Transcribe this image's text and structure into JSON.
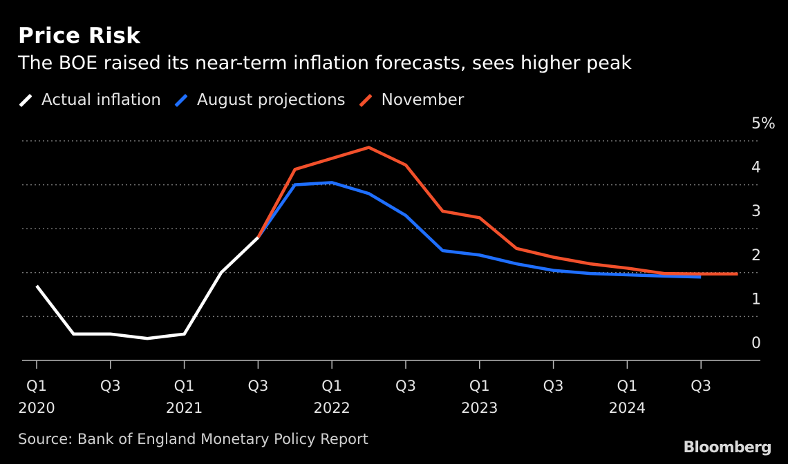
{
  "title": "Price Risk",
  "subtitle": "The BOE raised its near-term inflation forecasts, sees higher peak",
  "source": "Source: Bank of England Monetary Policy Report",
  "brand": "Bloomberg",
  "colors": {
    "background": "#000000",
    "actual": "#ffffff",
    "august": "#1f6fff",
    "november": "#f2502b",
    "grid": "#777777"
  },
  "legend": [
    {
      "name": "Actual inflation",
      "color": "#ffffff"
    },
    {
      "name": "August projections",
      "color": "#1f6fff"
    },
    {
      "name": "November",
      "color": "#f2502b"
    }
  ],
  "chart_data": {
    "type": "line",
    "title": "Price Risk",
    "subtitle": "The BOE raised its near-term inflation forecasts, sees higher peak",
    "xlabel": "",
    "ylabel": "",
    "ylim": [
      0,
      5
    ],
    "yticks": [
      "0",
      "1",
      "2",
      "3",
      "4",
      "5%"
    ],
    "y_axis_side": "right",
    "grid": true,
    "legend_position": "top-left",
    "x_categories": [
      "Q1 2020",
      "Q2 2020",
      "Q3 2020",
      "Q4 2020",
      "Q1 2021",
      "Q2 2021",
      "Q3 2021",
      "Q4 2021",
      "Q1 2022",
      "Q2 2022",
      "Q3 2022",
      "Q4 2022",
      "Q1 2023",
      "Q2 2023",
      "Q3 2023",
      "Q4 2023",
      "Q1 2024",
      "Q2 2024",
      "Q3 2024",
      "Q4 2024"
    ],
    "x_tick_labels": [
      {
        "q": "Q1",
        "year": "2020"
      },
      {
        "q": "Q3",
        "year": ""
      },
      {
        "q": "Q1",
        "year": "2021"
      },
      {
        "q": "Q3",
        "year": ""
      },
      {
        "q": "Q1",
        "year": "2022"
      },
      {
        "q": "Q3",
        "year": ""
      },
      {
        "q": "Q1",
        "year": "2023"
      },
      {
        "q": "Q3",
        "year": ""
      },
      {
        "q": "Q1",
        "year": "2024"
      },
      {
        "q": "Q3",
        "year": ""
      }
    ],
    "series": [
      {
        "name": "Actual inflation",
        "color": "#ffffff",
        "x": [
          "Q1 2020",
          "Q2 2020",
          "Q3 2020",
          "Q4 2020",
          "Q1 2021",
          "Q2 2021",
          "Q3 2021"
        ],
        "values": [
          1.7,
          0.6,
          0.6,
          0.5,
          0.6,
          2.0,
          2.8
        ]
      },
      {
        "name": "August projections",
        "color": "#1f6fff",
        "x": [
          "Q3 2021",
          "Q4 2021",
          "Q1 2022",
          "Q2 2022",
          "Q3 2022",
          "Q4 2022",
          "Q1 2023",
          "Q2 2023",
          "Q3 2023",
          "Q4 2023",
          "Q1 2024",
          "Q2 2024",
          "Q3 2024"
        ],
        "values": [
          2.8,
          4.0,
          4.05,
          3.8,
          3.3,
          2.5,
          2.4,
          2.2,
          2.05,
          1.98,
          1.95,
          1.92,
          1.9
        ]
      },
      {
        "name": "November",
        "color": "#f2502b",
        "x": [
          "Q3 2021",
          "Q4 2021",
          "Q1 2022",
          "Q2 2022",
          "Q3 2022",
          "Q4 2022",
          "Q1 2023",
          "Q2 2023",
          "Q3 2023",
          "Q4 2023",
          "Q1 2024",
          "Q2 2024",
          "Q3 2024",
          "Q4 2024"
        ],
        "values": [
          2.8,
          4.35,
          4.6,
          4.85,
          4.45,
          3.4,
          3.25,
          2.55,
          2.35,
          2.2,
          2.1,
          1.98,
          1.97,
          1.97
        ]
      }
    ]
  }
}
